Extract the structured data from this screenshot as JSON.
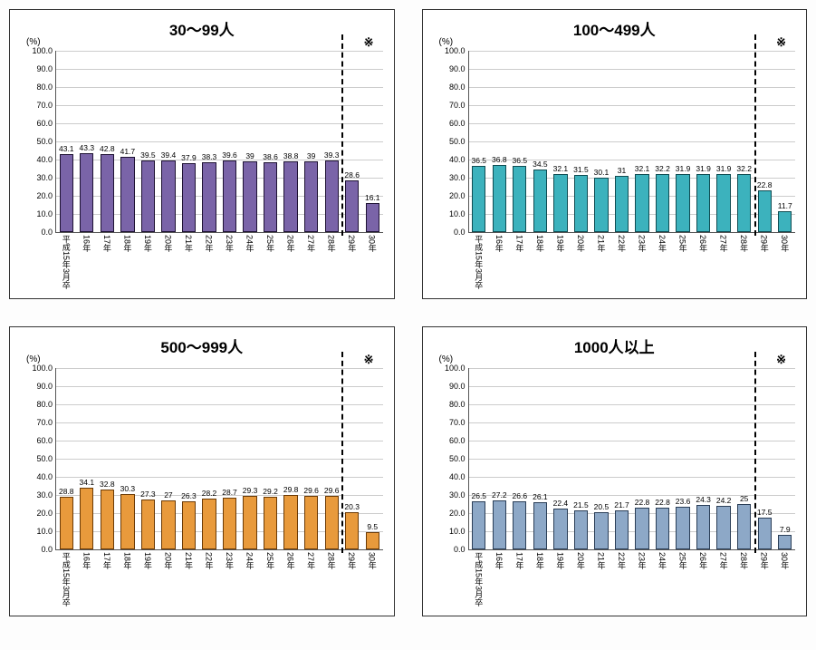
{
  "layout": {
    "rows": 2,
    "cols": 2,
    "panel_border": "#333333",
    "background": "#ffffff"
  },
  "axis": {
    "ymin": 0.0,
    "ymax": 100.0,
    "ystep": 10.0,
    "yticks": [
      "0.0",
      "10.0",
      "20.0",
      "30.0",
      "40.0",
      "50.0",
      "60.0",
      "70.0",
      "80.0",
      "90.0",
      "100.0"
    ],
    "y_unit": "(%)",
    "grid_color": "#cccccc",
    "tick_fontsize": 9
  },
  "categories": [
    "平成15年3月卒",
    "16年",
    "17年",
    "18年",
    "19年",
    "20年",
    "21年",
    "22年",
    "23年",
    "24年",
    "25年",
    "26年",
    "27年",
    "28年",
    "29年",
    "30年"
  ],
  "divider_after_index": 14,
  "note_mark": "※",
  "charts": [
    {
      "title": "30～99人",
      "bar_fill": "#7a64a8",
      "bar_border": "#1e1233",
      "values": [
        43.1,
        43.3,
        42.8,
        41.7,
        39.5,
        39.4,
        37.9,
        38.3,
        39.6,
        39.0,
        38.6,
        38.8,
        39.0,
        39.3,
        28.6,
        16.1
      ]
    },
    {
      "title": "100～499人",
      "bar_fill": "#3cb2bd",
      "bar_border": "#0f4c52",
      "values": [
        36.5,
        36.8,
        36.5,
        34.5,
        32.1,
        31.5,
        30.1,
        31.0,
        32.1,
        32.2,
        31.9,
        31.9,
        31.9,
        32.2,
        22.8,
        11.7
      ]
    },
    {
      "title": "500～999人",
      "bar_fill": "#e89a3c",
      "bar_border": "#6b3a05",
      "values": [
        28.8,
        34.1,
        32.8,
        30.3,
        27.3,
        27.0,
        26.3,
        28.2,
        28.7,
        29.3,
        29.2,
        29.8,
        29.6,
        29.6,
        20.3,
        9.5
      ]
    },
    {
      "title": "1000人以上",
      "bar_fill": "#8da8c7",
      "bar_border": "#2a3e57",
      "values": [
        26.5,
        27.2,
        26.6,
        26.1,
        22.4,
        21.5,
        20.5,
        21.7,
        22.8,
        22.8,
        23.6,
        24.3,
        24.2,
        25.0,
        17.5,
        7.9
      ]
    }
  ],
  "value_label_fontsize": 8.5,
  "title_fontsize": 17
}
